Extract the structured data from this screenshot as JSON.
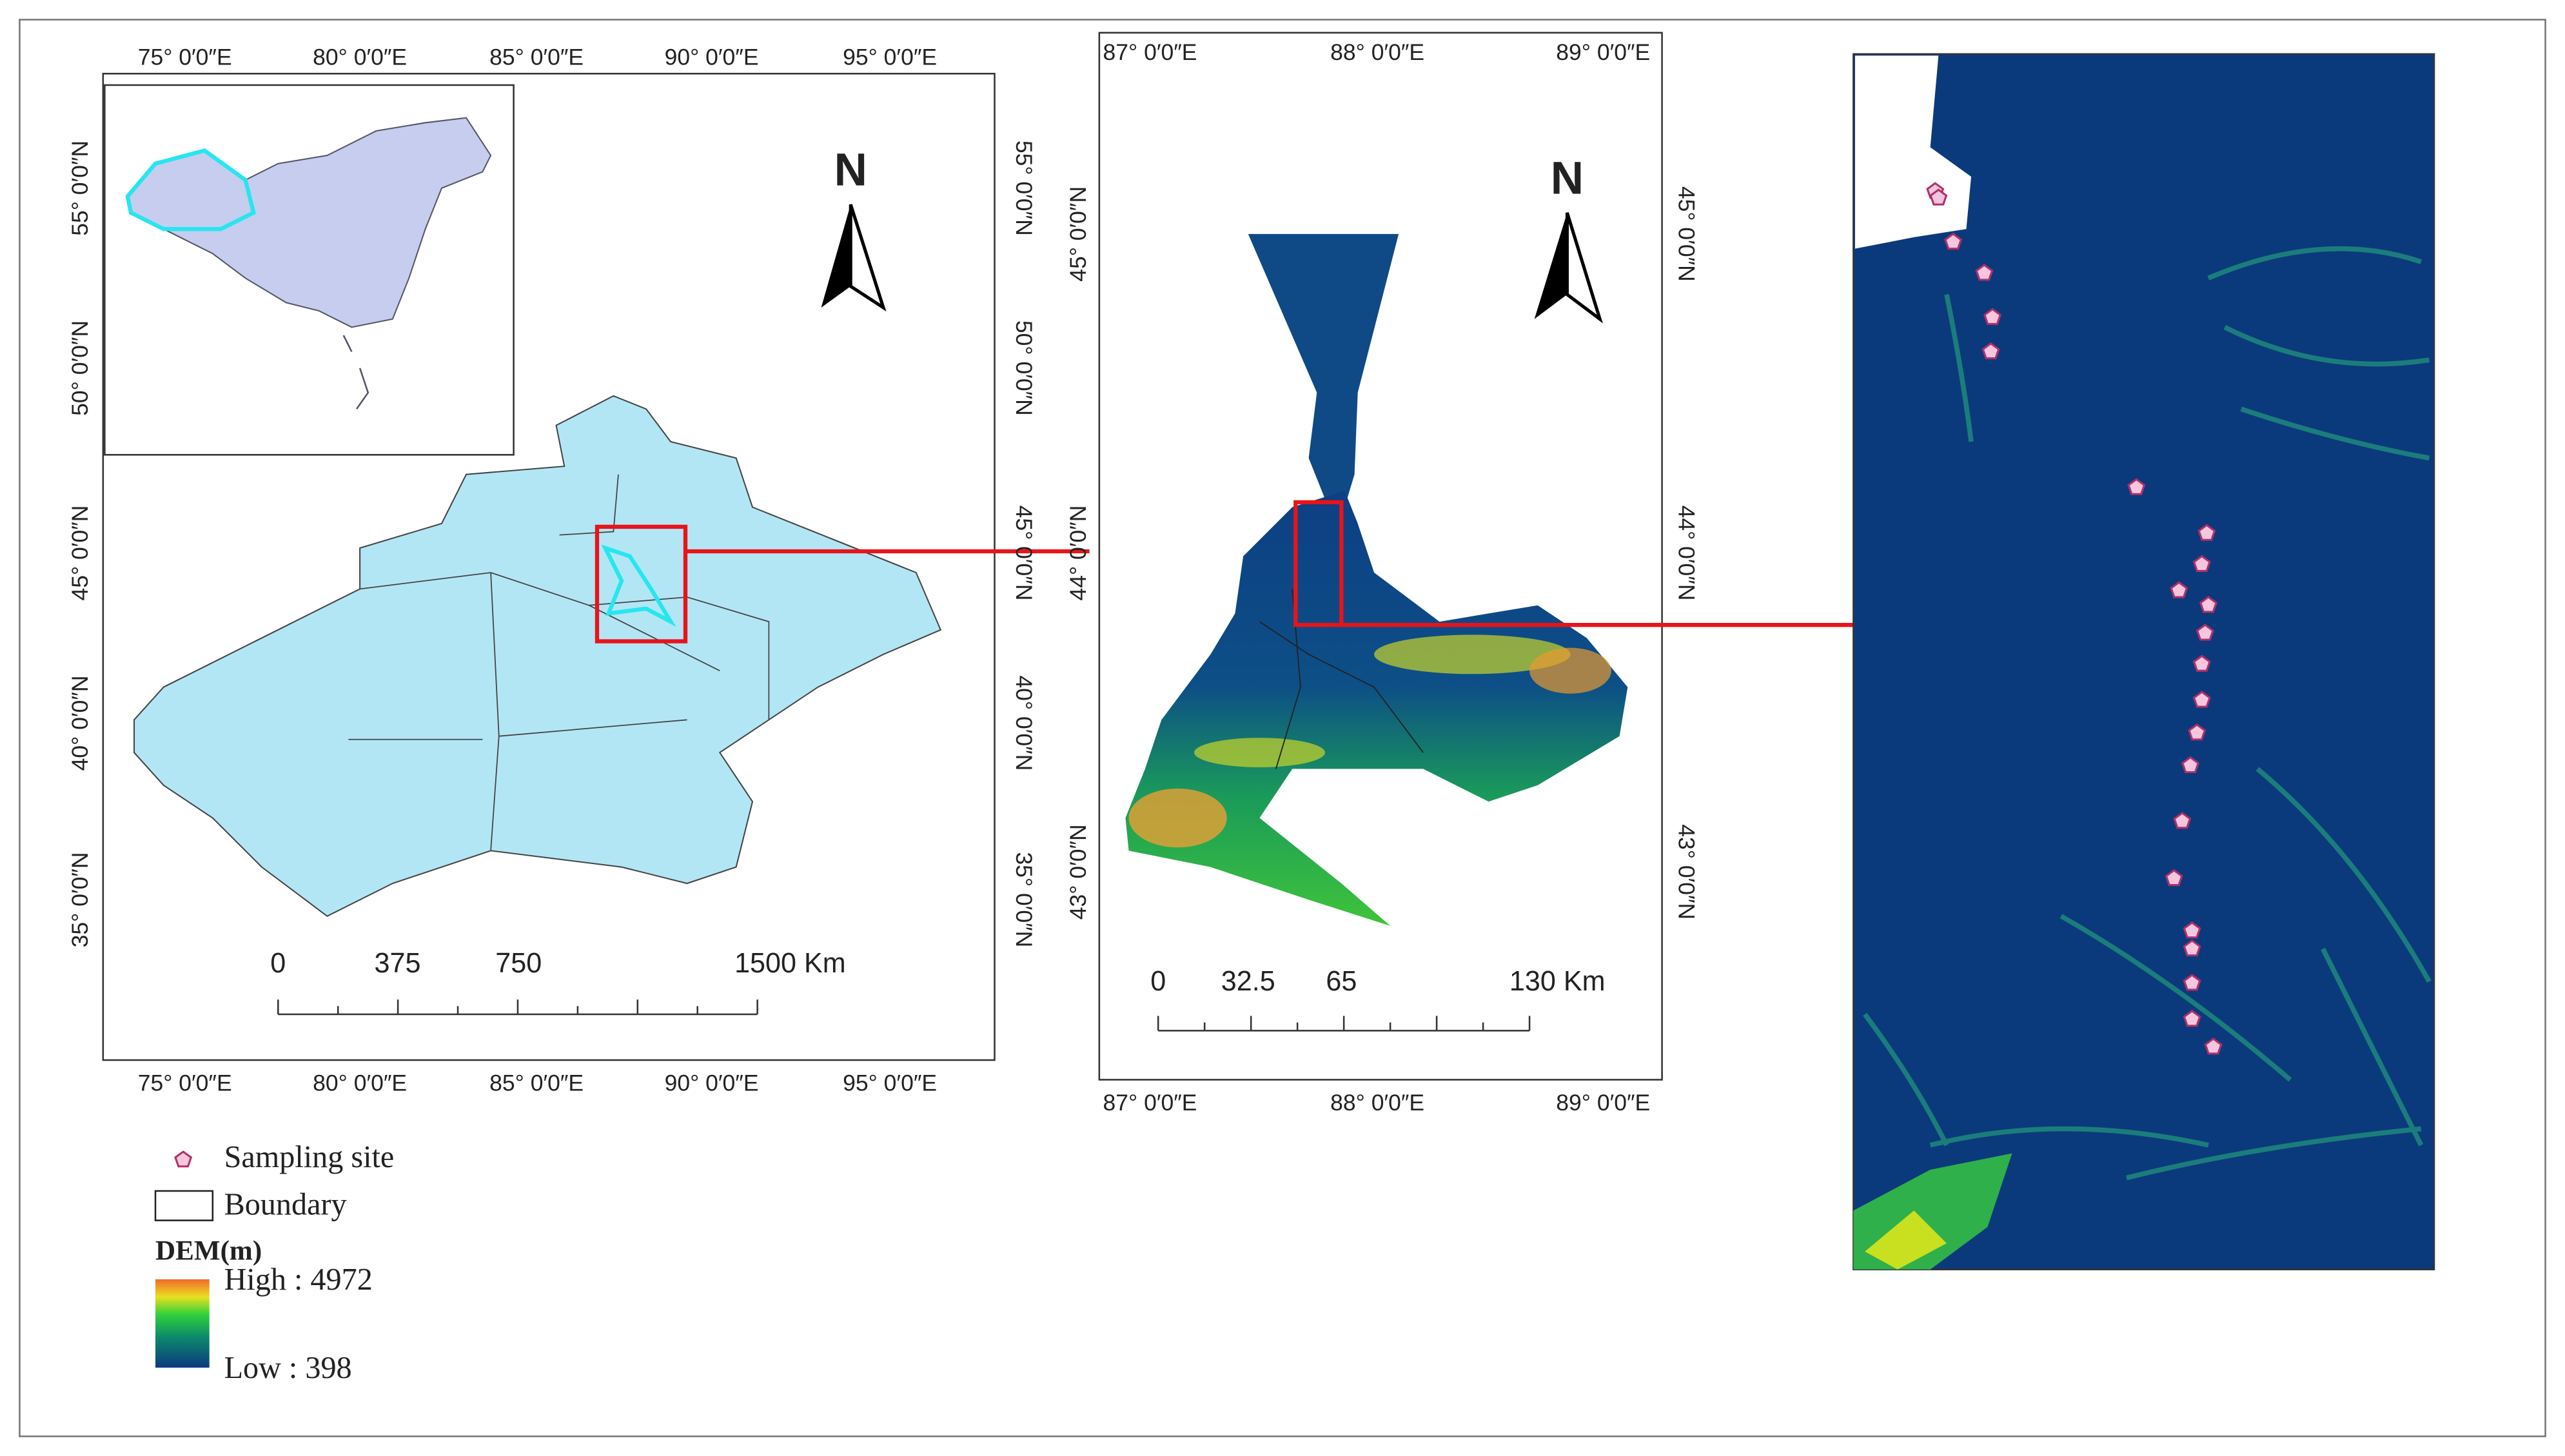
{
  "panel1": {
    "lon_labels": [
      "75° 0′0″E",
      "80° 0′0″E",
      "85° 0′0″E",
      "90° 0′0″E",
      "95° 0′0″E"
    ],
    "lat_labels": [
      "55° 0′0″N",
      "50° 0′0″N",
      "45° 0′0″N",
      "40° 0′0″N",
      "35° 0′0″N"
    ],
    "north": "N",
    "scale_labels": [
      "0",
      "375",
      "750",
      "1500 Km"
    ]
  },
  "panel2": {
    "lon_labels": [
      "87° 0′0″E",
      "88° 0′0″E",
      "89° 0′0″E"
    ],
    "lat_labels": [
      "45° 0′0″N",
      "44° 0′0″N",
      "43° 0′0″N"
    ],
    "north": "N",
    "scale_labels": [
      "0",
      "32.5",
      "65",
      "130 Km"
    ]
  },
  "legend": {
    "sampling_site": "Sampling site",
    "boundary": "Boundary",
    "dem_title": "DEM(m)",
    "high": "High : 4972",
    "low": "Low : 398"
  }
}
